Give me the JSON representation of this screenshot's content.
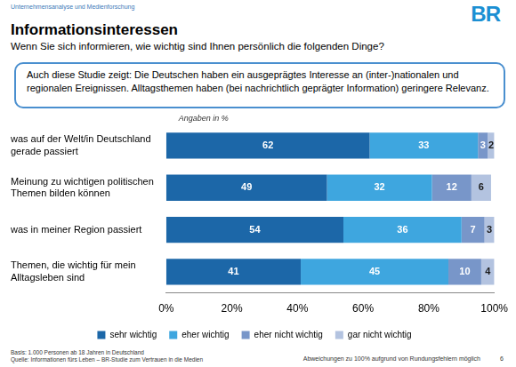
{
  "page": {
    "section": "Unternehmensanalyse und Medienforschung",
    "logo": "BR",
    "summary": "Auch diese Studie zeigt: Die Deutschen haben ein ausgeprägtes Interesse an (inter-)nationalen und regionalen Ereignissen. Alltagsthemen haben (bei nachrichtlich geprägter Information) geringere Relevanz.",
    "notes": [
      "Basis: 1.000 Personen ab 18 Jahren in Deutschland",
      "Quelle: Informationen fürs Leben – BR-Studie zum Vertrauen in die Medien"
    ],
    "footnote": "Abweichungen zu 100% aufgrund von Rundungsfehlern möglich",
    "page_number": 6
  },
  "chart_data": {
    "type": "bar",
    "orientation": "horizontal",
    "stacked": true,
    "title": "Informationsinteressen",
    "subtitle": "Wenn Sie sich informieren, wie wichtig sind Ihnen persönlich die folgenden Dinge?",
    "annotations": [
      "Angaben in %"
    ],
    "categories": [
      "was auf der Welt/in Deutschland gerade passiert",
      "Meinung zu wichtigen politischen Themen bilden können",
      "was in meiner Region passiert",
      "Themen, die wichtig für mein Alltagsleben sind"
    ],
    "series": [
      {
        "name": "sehr wichtig",
        "color": "#1c67a8",
        "values": [
          62,
          49,
          54,
          41
        ]
      },
      {
        "name": "eher wichtig",
        "color": "#3ea6df",
        "values": [
          33,
          32,
          36,
          45
        ]
      },
      {
        "name": "eher nicht wichtig",
        "color": "#7896c9",
        "values": [
          3,
          12,
          7,
          10
        ]
      },
      {
        "name": "gar nicht wichtig",
        "color": "#b3c3e0",
        "values": [
          2,
          6,
          3,
          4
        ]
      }
    ],
    "xlim": [
      0,
      100
    ],
    "xticks": [
      {
        "value": 0,
        "label": "0%"
      },
      {
        "value": 20,
        "label": "20%"
      },
      {
        "value": 40,
        "label": "40%"
      },
      {
        "value": 60,
        "label": "60%"
      },
      {
        "value": 80,
        "label": "80%"
      },
      {
        "value": 100,
        "label": "100%"
      }
    ],
    "grid": false,
    "legend": "bottom",
    "data_labels": true
  }
}
